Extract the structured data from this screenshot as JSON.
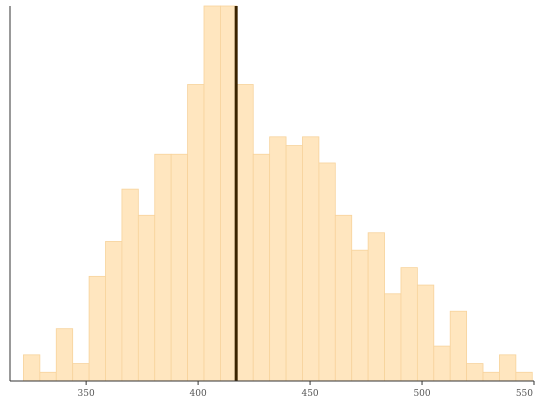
{
  "chart_data": {
    "type": "bar",
    "title": "",
    "xlabel": "",
    "ylabel": "",
    "xlim": [
      316,
      550
    ],
    "ylim": [
      0,
      43
    ],
    "bin_width": 7.33,
    "bin_start": 322,
    "counts": [
      3,
      1,
      6,
      2,
      12,
      16,
      22,
      19,
      26,
      26,
      34,
      43,
      43,
      34,
      26,
      28,
      27,
      28,
      25,
      19,
      15,
      17,
      10,
      13,
      11,
      4,
      8,
      2,
      1,
      3,
      1
    ],
    "reference_line": {
      "x": 417
    },
    "xticks": [
      350,
      400,
      450,
      500,
      550
    ],
    "xtick_labels": [
      "350",
      "400",
      "450",
      "500",
      "550"
    ],
    "colors": {
      "bar_fill": "#ffe6bf",
      "bar_stroke": "#f7d39c",
      "line": "#3b2400"
    },
    "grid": false,
    "legend": "none"
  }
}
